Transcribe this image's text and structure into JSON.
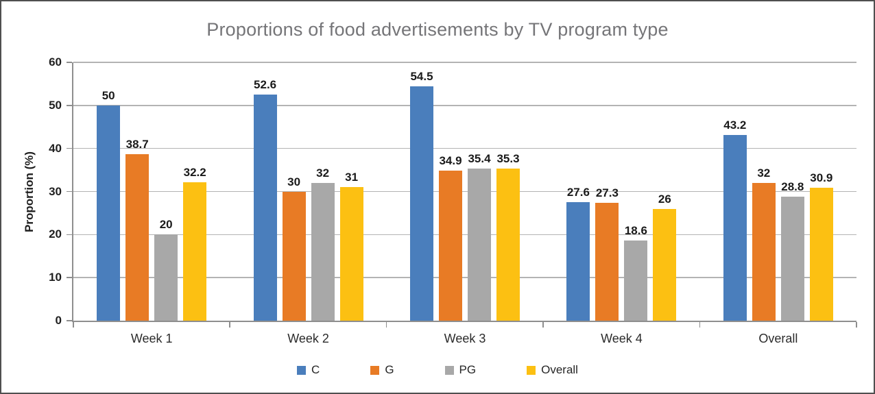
{
  "chart_data": {
    "type": "bar",
    "title": "Proportions of food advertisements by TV program type",
    "xlabel": "",
    "ylabel": "Proportion (%)",
    "ylim": [
      0,
      60
    ],
    "yticks": [
      0,
      10,
      20,
      30,
      40,
      50,
      60
    ],
    "grid": true,
    "data_labels": true,
    "legend_position": "bottom",
    "categories": [
      "Week 1",
      "Week 2",
      "Week 3",
      "Week 4",
      "Overall"
    ],
    "series": [
      {
        "name": "C",
        "color": "#4a7ebc",
        "values": [
          50,
          52.6,
          54.5,
          27.6,
          43.2
        ]
      },
      {
        "name": "G",
        "color": "#e87b25",
        "values": [
          38.7,
          30,
          34.9,
          27.3,
          32
        ]
      },
      {
        "name": "PG",
        "color": "#a8a8a8",
        "values": [
          20,
          32,
          35.4,
          18.6,
          28.8
        ]
      },
      {
        "name": "Overall",
        "color": "#fcc012",
        "values": [
          32.2,
          31,
          35.3,
          26,
          30.9
        ]
      }
    ]
  },
  "style": {
    "title_color": "#757578",
    "axis_color": "#8e8e8e",
    "grid_color": "#b3b3b3",
    "text_color": "#1f1f1f",
    "figure_border_color": "#4f4f4f"
  }
}
